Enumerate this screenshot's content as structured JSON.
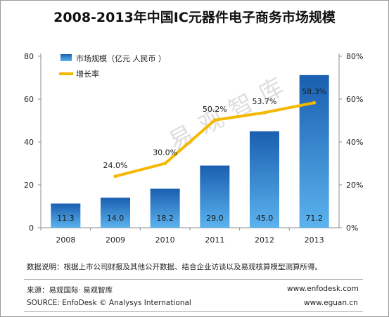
{
  "title": "2008-2013年中国IC元器件电子商务市场规模",
  "watermark": "易观智库",
  "note": "数据说明：根据上市公司财报及其他公开数据、结合企业访谈以及易观核算模型测算所得。",
  "source": {
    "cn": "来源：易观国际· 易观智库",
    "en": "SOURCE: EnfoDesk © Analysys International",
    "url1": "www.enfodesk.com",
    "url2": "www.eguan.cn"
  },
  "chart_data": {
    "type": "bar",
    "categories": [
      "2008",
      "2009",
      "2010",
      "2011",
      "2012",
      "2013"
    ],
    "series": [
      {
        "name": "市场规模（亿元  人民币  ）",
        "kind": "bar",
        "axis": "left",
        "values": [
          11.3,
          14.0,
          18.2,
          29.0,
          45.0,
          71.2
        ],
        "labels": [
          "11.3",
          "14.0",
          "18.2",
          "29.0",
          "45.0",
          "71.2"
        ],
        "color": "#1f6dbd"
      },
      {
        "name": "增长率",
        "kind": "line",
        "axis": "right",
        "values": [
          null,
          0.24,
          0.3,
          0.502,
          0.537,
          0.583
        ],
        "labels": [
          "",
          "24.0%",
          "30.0%",
          "50.2%",
          "53.7%",
          "58.3%"
        ],
        "color": "#f5b800"
      }
    ],
    "left_axis": {
      "min": 0,
      "max": 80,
      "ticks": [
        "0",
        "20",
        "40",
        "60",
        "80"
      ]
    },
    "right_axis": {
      "min": 0,
      "max": 0.8,
      "ticks": [
        "0%",
        "20%",
        "40%",
        "60%",
        "80%"
      ]
    },
    "legend": "top-left",
    "grid": false
  }
}
